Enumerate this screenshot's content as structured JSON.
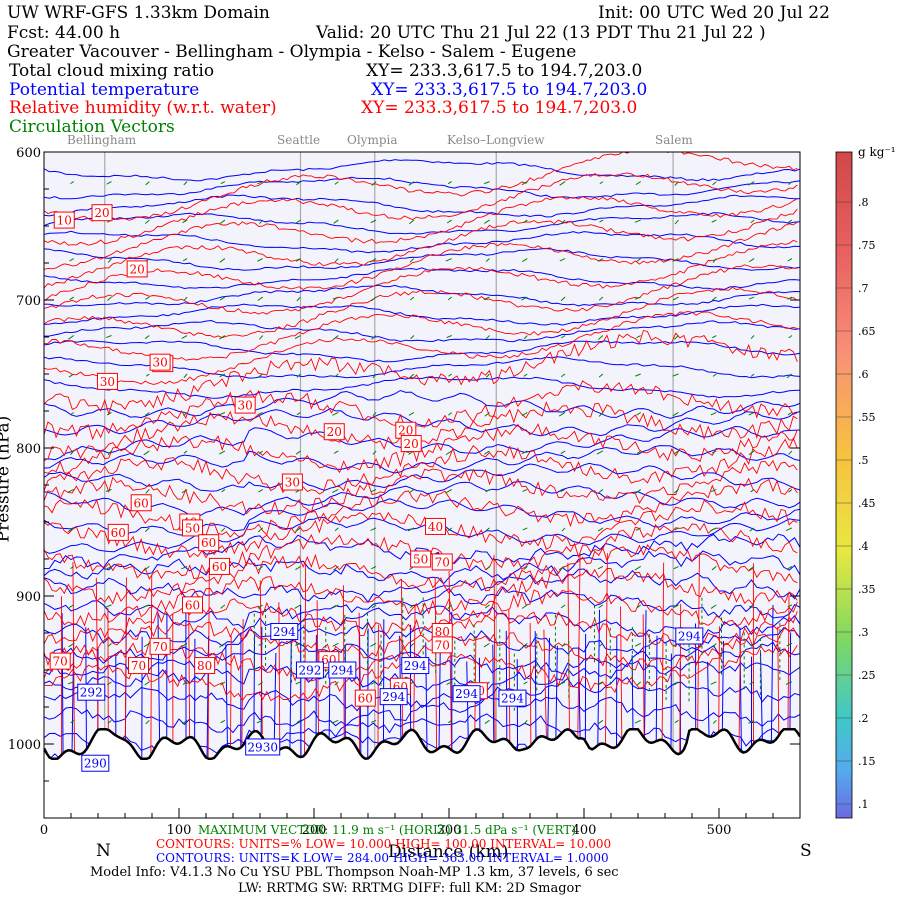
{
  "header": {
    "domain_title": "UW WRF-GFS 1.33km Domain",
    "init": "Init: 00 UTC Wed 20 Jul 22",
    "fcst": "Fcst:   44.00 h",
    "valid": "Valid: 20 UTC Thu 21 Jul 22   (13 PDT Thu 21 Jul 22  )",
    "region": "Greater Vacouver - Bellingham - Olympia - Kelso - Salem - Eugene",
    "fields": [
      {
        "label": "Total cloud mixing ratio",
        "xy": "XY= 233.3,617.5 to 194.7,203.0",
        "color": "#000000"
      },
      {
        "label": "Potential temperature",
        "xy": "XY= 233.3,617.5 to 194.7,203.0",
        "color": "#0000ff"
      },
      {
        "label": "Relative humidity (w.r.t. water)",
        "xy": "XY= 233.3,617.5 to 194.7,203.0",
        "color": "#ff0000"
      },
      {
        "label": "Circulation Vectors",
        "xy": "",
        "color": "#008000"
      }
    ]
  },
  "chart_data": {
    "type": "cross-section",
    "ylabel": "Pressure (hPa)",
    "xlabel": "Distance (km)",
    "yticks": [
      600,
      700,
      800,
      900,
      1000
    ],
    "ylim": [
      1050,
      600
    ],
    "xticks": [
      0,
      100,
      200,
      300,
      400,
      500
    ],
    "xlim": [
      0,
      560
    ],
    "x_end_labels": {
      "left": "N",
      "right": "S"
    },
    "locations": [
      {
        "name": "Bellingham",
        "x": 45
      },
      {
        "name": "Seattle",
        "x": 190
      },
      {
        "name": "Olympia",
        "x": 245
      },
      {
        "name": "Kelso–Longview",
        "x": 335
      },
      {
        "name": "Salem",
        "x": 466
      }
    ],
    "theta_labels": [
      "292",
      "290",
      "294",
      "294",
      "292",
      "294",
      "294",
      "294",
      "294",
      "294",
      "2930"
    ],
    "rh_labels": [
      "10",
      "20",
      "20",
      "20",
      "30",
      "30",
      "20",
      "30",
      "20",
      "20",
      "30",
      "60",
      "40",
      "60",
      "50",
      "60",
      "40",
      "60",
      "50",
      "60",
      "70",
      "80",
      "70",
      "70",
      "70",
      "80",
      "60",
      "60",
      "50",
      "60",
      "70"
    ],
    "colorbar": {
      "unit": "g kg⁻¹",
      "ticks": [
        ".1",
        ".15",
        ".2",
        ".25",
        ".3",
        ".35",
        ".4",
        ".45",
        ".5",
        ".55",
        ".6",
        ".65",
        ".7",
        ".75",
        ".8"
      ]
    },
    "rh_contours": {
      "units": "%",
      "low": 10.0,
      "high": 100.0,
      "interval": 10.0
    },
    "theta_contours": {
      "units": "K",
      "low": 284.0,
      "high": 363.0,
      "interval": 1.0
    },
    "max_vector_horiz": "11.9 m s⁻¹ (HORIZ)",
    "max_vector_vert": "31.5 dPa s⁻¹ (VERT)"
  },
  "footer": {
    "max_vector_line": "MAXIMUM VECTOR:  11.9 m s⁻¹ (HORIZ)          31.5 dPa s⁻¹ (VERT)",
    "rh_line": "CONTOURS:  UNITS=%  LOW=   10.000         HIGH=   100.00          INTERVAL=   10.000",
    "theta_line": "CONTOURS:  UNITS=K  LOW=   284.00         HIGH=   363.00          INTERVAL=   1.0000",
    "model_info": "Model Info: V4.1.3    No Cu    YSU PBL  Thompson     Noah-MP     1.3 km,   37 levels,    6 sec",
    "physics": "LW: RRTMG SW: RRTMG    DIFF: full    KM: 2D Smagor"
  },
  "colors": {
    "theta": "#0000ff",
    "rh": "#ff0000",
    "wind": "#008000",
    "terrain": "#000000",
    "panel": "#f3f3fb"
  }
}
